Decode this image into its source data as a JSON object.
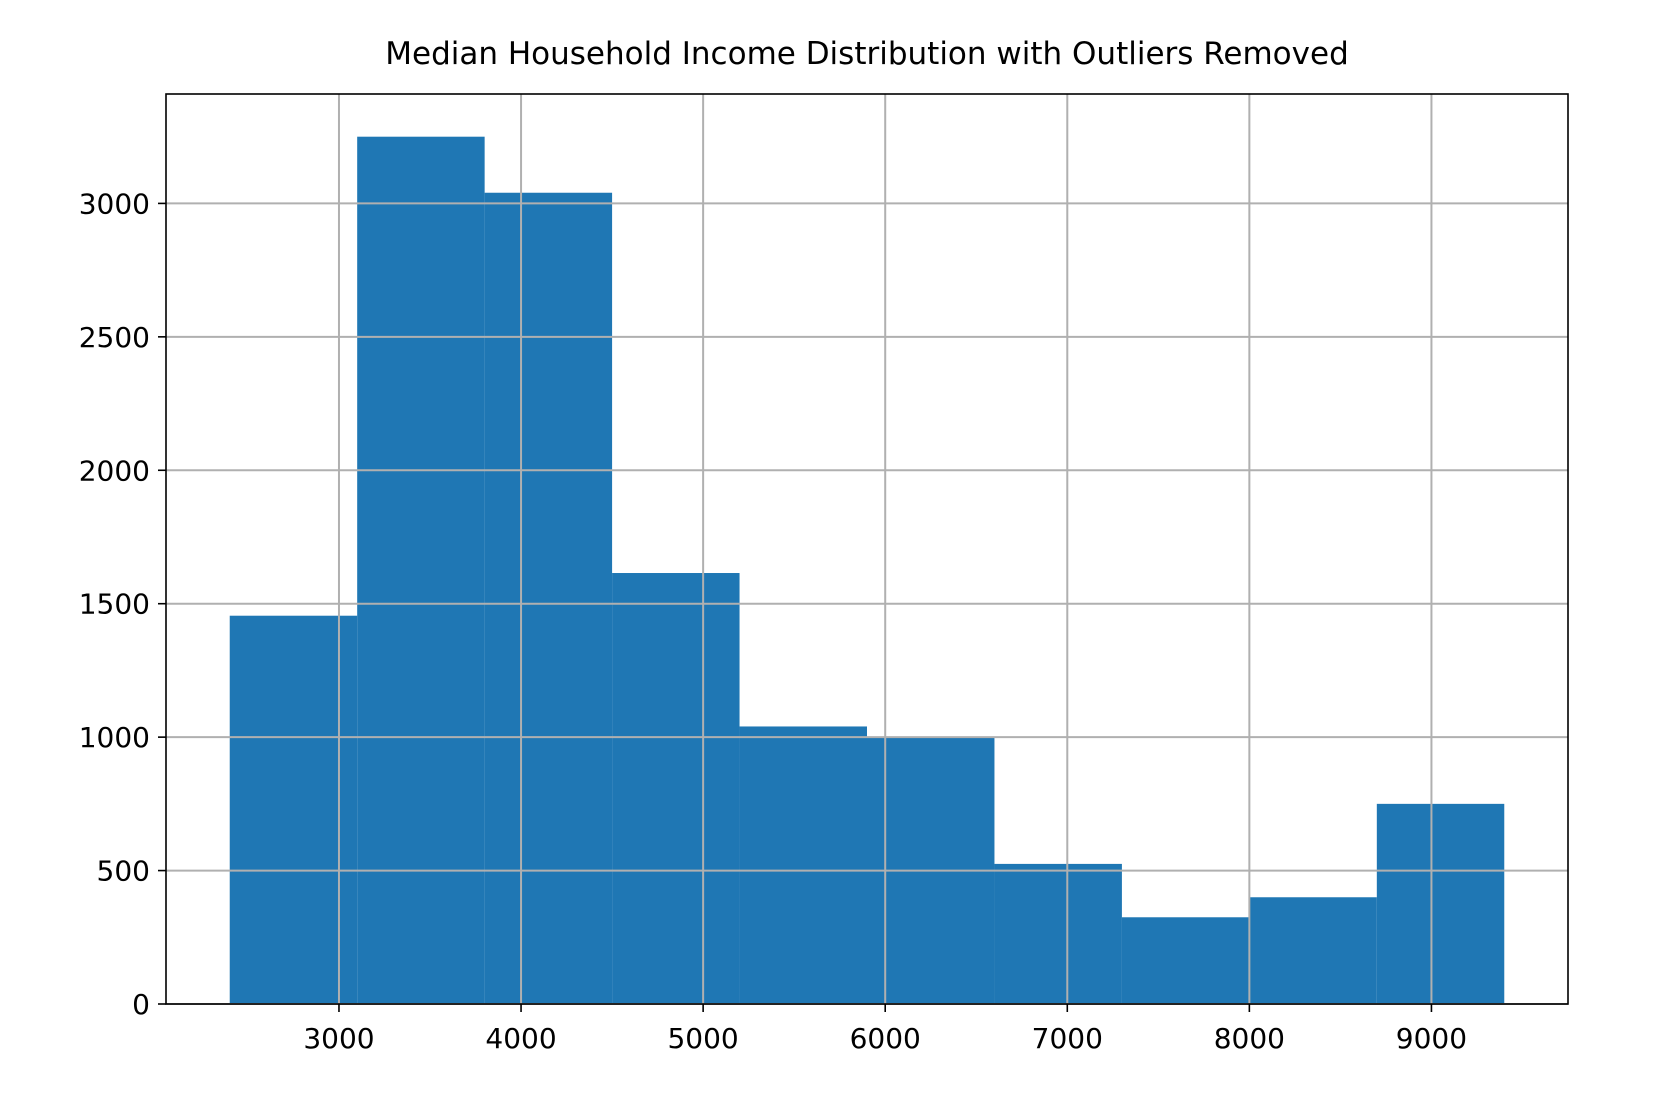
{
  "chart_data": {
    "type": "bar",
    "subtype": "histogram",
    "title": "Median Household Income Distribution with Outliers Removed",
    "xlabel": "",
    "ylabel": "",
    "bins": [
      {
        "start": 2400,
        "end": 3100,
        "count": 1455
      },
      {
        "start": 3100,
        "end": 3800,
        "count": 3250
      },
      {
        "start": 3800,
        "end": 4500,
        "count": 3040
      },
      {
        "start": 4500,
        "end": 5200,
        "count": 1615
      },
      {
        "start": 5200,
        "end": 5900,
        "count": 1040
      },
      {
        "start": 5900,
        "end": 6600,
        "count": 1000
      },
      {
        "start": 6600,
        "end": 7300,
        "count": 525
      },
      {
        "start": 7300,
        "end": 8000,
        "count": 325
      },
      {
        "start": 8000,
        "end": 8700,
        "count": 400
      },
      {
        "start": 8700,
        "end": 9400,
        "count": 750
      }
    ],
    "xlim": [
      2050,
      9750
    ],
    "ylim": [
      0,
      3410
    ],
    "xticks": [
      3000,
      4000,
      5000,
      6000,
      7000,
      8000,
      9000
    ],
    "xtick_labels": [
      "3000",
      "4000",
      "5000",
      "6000",
      "7000",
      "8000",
      "9000"
    ],
    "yticks": [
      0,
      500,
      1000,
      1500,
      2000,
      2500,
      3000
    ],
    "ytick_labels": [
      "0",
      "500",
      "1000",
      "1500",
      "2000",
      "2500",
      "3000"
    ],
    "grid": true,
    "legend": "none",
    "colors": {
      "bar": "#1f77b4",
      "grid": "#b0b0b0",
      "axis": "#000000"
    }
  }
}
